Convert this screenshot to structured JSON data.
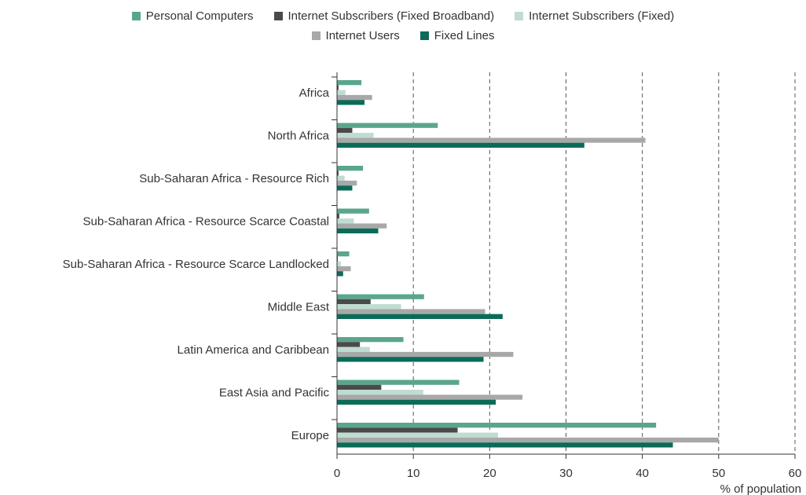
{
  "chart_data": {
    "type": "bar",
    "orientation": "horizontal",
    "categories": [
      "Africa",
      "North Africa",
      "Sub-Saharan Africa - Resource Rich",
      "Sub-Saharan Africa - Resource Scarce Coastal",
      "Sub-Saharan Africa - Resource Scarce Landlocked",
      "Middle East",
      "Latin America and Caribbean",
      "East Asia and Pacific",
      "Europe"
    ],
    "series": [
      {
        "name": "Personal Computers",
        "color": "#5aa68c",
        "values": [
          3.2,
          13.2,
          3.4,
          4.2,
          1.6,
          11.4,
          8.7,
          16.0,
          41.8
        ]
      },
      {
        "name": "Internet Subscribers (Fixed Broadband)",
        "color": "#4a4a4a",
        "values": [
          0.2,
          2.0,
          0.2,
          0.3,
          0.1,
          4.4,
          3.0,
          5.8,
          15.8
        ]
      },
      {
        "name": "Internet Subscribers (Fixed)",
        "color": "#bfdcd0",
        "values": [
          1.1,
          4.8,
          1.0,
          2.2,
          0.5,
          8.4,
          4.3,
          11.3,
          21.1
        ]
      },
      {
        "name": "Internet Users",
        "color": "#a8a8a8",
        "values": [
          4.6,
          40.4,
          2.6,
          6.5,
          1.8,
          19.4,
          23.1,
          24.3,
          50.0
        ]
      },
      {
        "name": "Fixed Lines",
        "color": "#0b6b58",
        "values": [
          3.6,
          32.4,
          2.0,
          5.4,
          0.8,
          21.7,
          19.2,
          20.8,
          44.0
        ]
      }
    ],
    "legend_rows": [
      [
        0,
        1,
        2
      ],
      [
        3,
        4
      ]
    ],
    "xlim": [
      0,
      60
    ],
    "xticks": [
      0,
      10,
      20,
      30,
      40,
      50,
      60
    ],
    "xlabel": "% of population",
    "grid": "vertical dashed"
  }
}
